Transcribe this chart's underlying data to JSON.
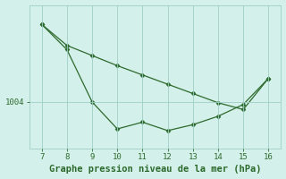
{
  "xlabel": "Graphe pression niveau de la mer (hPa)",
  "x": [
    7,
    8,
    9,
    10,
    11,
    12,
    13,
    14,
    15,
    16
  ],
  "y": [
    1013.2,
    1010.2,
    1004.0,
    1000.8,
    1001.6,
    1000.6,
    1001.3,
    1002.3,
    1003.7,
    1006.8
  ],
  "y_smooth": [
    1013.2,
    1010.7,
    1009.5,
    1008.3,
    1007.2,
    1006.1,
    1005.0,
    1003.9,
    1003.1,
    1006.8
  ],
  "xlim": [
    6.5,
    16.5
  ],
  "ylim": [
    998.5,
    1015.5
  ],
  "ytick_val": 1004,
  "line_color": "#2d6a2d",
  "bg_color": "#d4f0ea",
  "grid_color": "#9ecec6",
  "xlabel_fontsize": 7.5,
  "tick_fontsize": 6.5,
  "markersize": 2.5
}
